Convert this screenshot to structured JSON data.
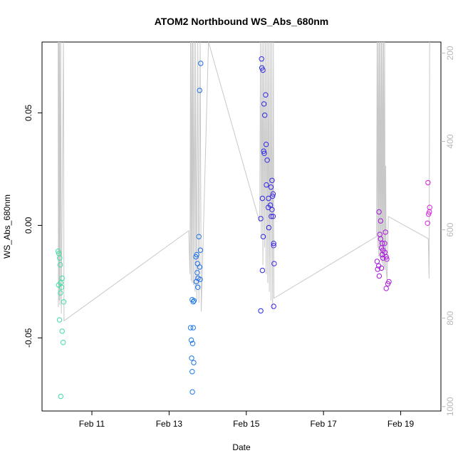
{
  "chart_data": {
    "type": "scatter",
    "title": "ATOM2 Northbound WS_Abs_680nm",
    "xlabel": "Date",
    "ylabel": "WS_Abs_680nm",
    "xlim": [
      "2023-02-09 17:00",
      "2023-02-20 01:00"
    ],
    "ylim": [
      -0.0825,
      0.0815
    ],
    "x_ticks": [
      {
        "value": "2023-02-11",
        "label": "Feb 11"
      },
      {
        "value": "2023-02-13",
        "label": "Feb 13"
      },
      {
        "value": "2023-02-15",
        "label": "Feb 15"
      },
      {
        "value": "2023-02-17",
        "label": "Feb 17"
      },
      {
        "value": "2023-02-19",
        "label": "Feb 19"
      }
    ],
    "y_ticks": [
      {
        "value": -0.05,
        "label": "-0.05"
      },
      {
        "value": 0.0,
        "label": "0.00"
      },
      {
        "value": 0.05,
        "label": "0.05"
      }
    ],
    "secondary_axis": {
      "side": "right",
      "color": "#b8b8b8",
      "ylim": [
        1010,
        175
      ],
      "ticks": [
        {
          "value": 200,
          "label": "200"
        },
        {
          "value": 400,
          "label": "400"
        },
        {
          "value": 600,
          "label": "600"
        },
        {
          "value": 800,
          "label": "800"
        },
        {
          "value": 1000,
          "label": "1000"
        }
      ]
    },
    "grid": false,
    "point_style": "open-circle",
    "color_gradient": [
      "#40e0a0",
      "#20b0e8",
      "#1830e8",
      "#7a10e0",
      "#d820d8"
    ],
    "line_color": "#c8c8c8",
    "points": [
      {
        "x": "2023-02-10 03:00",
        "y": -0.0115
      },
      {
        "x": "2023-02-10 03:30",
        "y": -0.0125
      },
      {
        "x": "2023-02-10 04:00",
        "y": -0.0145
      },
      {
        "x": "2023-02-10 04:20",
        "y": -0.0175
      },
      {
        "x": "2023-02-10 03:20",
        "y": -0.0265
      },
      {
        "x": "2023-02-10 04:40",
        "y": -0.0255
      },
      {
        "x": "2023-02-10 05:30",
        "y": -0.0235
      },
      {
        "x": "2023-02-10 05:10",
        "y": -0.0275
      },
      {
        "x": "2023-02-10 04:30",
        "y": -0.03
      },
      {
        "x": "2023-02-10 06:30",
        "y": -0.034
      },
      {
        "x": "2023-02-10 03:50",
        "y": -0.042
      },
      {
        "x": "2023-02-10 05:30",
        "y": -0.047
      },
      {
        "x": "2023-02-10 06:10",
        "y": -0.052
      },
      {
        "x": "2023-02-10 04:40",
        "y": -0.076
      },
      {
        "x": "2023-02-13 13:20",
        "y": -0.0455
      },
      {
        "x": "2023-02-13 15:00",
        "y": -0.0455
      },
      {
        "x": "2023-02-13 13:50",
        "y": -0.051
      },
      {
        "x": "2023-02-13 14:40",
        "y": -0.0525
      },
      {
        "x": "2023-02-13 14:00",
        "y": -0.059
      },
      {
        "x": "2023-02-13 15:20",
        "y": -0.061
      },
      {
        "x": "2023-02-13 14:20",
        "y": -0.065
      },
      {
        "x": "2023-02-13 14:30",
        "y": -0.074
      },
      {
        "x": "2023-02-13 14:20",
        "y": -0.033
      },
      {
        "x": "2023-02-13 15:30",
        "y": -0.0335
      },
      {
        "x": "2023-02-13 15:00",
        "y": -0.034
      },
      {
        "x": "2023-02-13 16:40",
        "y": -0.014
      },
      {
        "x": "2023-02-13 17:10",
        "y": -0.013
      },
      {
        "x": "2023-02-13 17:40",
        "y": -0.017
      },
      {
        "x": "2023-02-13 18:30",
        "y": -0.005
      },
      {
        "x": "2023-02-13 19:30",
        "y": -0.011
      },
      {
        "x": "2023-02-13 19:00",
        "y": -0.0185
      },
      {
        "x": "2023-02-13 17:30",
        "y": -0.021
      },
      {
        "x": "2023-02-13 18:00",
        "y": -0.0235
      },
      {
        "x": "2023-02-13 19:20",
        "y": -0.024
      },
      {
        "x": "2023-02-13 16:50",
        "y": -0.025
      },
      {
        "x": "2023-02-13 17:50",
        "y": -0.0275
      },
      {
        "x": "2023-02-13 19:00",
        "y": 0.06
      },
      {
        "x": "2023-02-13 19:40",
        "y": 0.072
      },
      {
        "x": "2023-02-15 09:00",
        "y": -0.038
      },
      {
        "x": "2023-02-15 09:30",
        "y": 0.074
      },
      {
        "x": "2023-02-15 09:40",
        "y": 0.07
      },
      {
        "x": "2023-02-15 10:20",
        "y": 0.069
      },
      {
        "x": "2023-02-15 12:00",
        "y": 0.058
      },
      {
        "x": "2023-02-15 11:00",
        "y": 0.054
      },
      {
        "x": "2023-02-15 11:30",
        "y": 0.049
      },
      {
        "x": "2023-02-15 12:20",
        "y": 0.036
      },
      {
        "x": "2023-02-15 10:50",
        "y": 0.033
      },
      {
        "x": "2023-02-15 11:10",
        "y": 0.032
      },
      {
        "x": "2023-02-15 13:00",
        "y": 0.029
      },
      {
        "x": "2023-02-15 16:00",
        "y": 0.02
      },
      {
        "x": "2023-02-15 12:30",
        "y": 0.018
      },
      {
        "x": "2023-02-15 15:20",
        "y": 0.017
      },
      {
        "x": "2023-02-15 16:40",
        "y": 0.014
      },
      {
        "x": "2023-02-15 16:20",
        "y": 0.013
      },
      {
        "x": "2023-02-15 10:00",
        "y": 0.012
      },
      {
        "x": "2023-02-15 13:50",
        "y": 0.012
      },
      {
        "x": "2023-02-15 15:00",
        "y": 0.009
      },
      {
        "x": "2023-02-15 13:40",
        "y": 0.008
      },
      {
        "x": "2023-02-15 16:00",
        "y": 0.007
      },
      {
        "x": "2023-02-15 15:30",
        "y": 0.004
      },
      {
        "x": "2023-02-15 16:40",
        "y": 0.004
      },
      {
        "x": "2023-02-15 09:00",
        "y": 0.003
      },
      {
        "x": "2023-02-15 14:00",
        "y": -0.001
      },
      {
        "x": "2023-02-15 10:30",
        "y": -0.005
      },
      {
        "x": "2023-02-15 17:00",
        "y": -0.008
      },
      {
        "x": "2023-02-15 17:00",
        "y": -0.009
      },
      {
        "x": "2023-02-15 17:20",
        "y": -0.017
      },
      {
        "x": "2023-02-15 10:00",
        "y": -0.02
      },
      {
        "x": "2023-02-15 17:00",
        "y": -0.036
      },
      {
        "x": "2023-02-18 10:30",
        "y": 0.006
      },
      {
        "x": "2023-02-18 11:30",
        "y": 0.002
      },
      {
        "x": "2023-02-18 14:30",
        "y": -0.003
      },
      {
        "x": "2023-02-18 11:00",
        "y": -0.004
      },
      {
        "x": "2023-02-18 11:30",
        "y": -0.006
      },
      {
        "x": "2023-02-18 12:30",
        "y": -0.008
      },
      {
        "x": "2023-02-18 14:00",
        "y": -0.008
      },
      {
        "x": "2023-02-18 12:00",
        "y": -0.01
      },
      {
        "x": "2023-02-18 13:00",
        "y": -0.011
      },
      {
        "x": "2023-02-18 14:10",
        "y": -0.012
      },
      {
        "x": "2023-02-18 12:30",
        "y": -0.013
      },
      {
        "x": "2023-02-18 15:00",
        "y": -0.014
      },
      {
        "x": "2023-02-18 13:00",
        "y": -0.0145
      },
      {
        "x": "2023-02-18 15:20",
        "y": -0.015
      },
      {
        "x": "2023-02-18 09:20",
        "y": -0.016
      },
      {
        "x": "2023-02-18 10:20",
        "y": -0.018
      },
      {
        "x": "2023-02-18 12:00",
        "y": -0.019
      },
      {
        "x": "2023-02-18 09:40",
        "y": -0.0195
      },
      {
        "x": "2023-02-18 10:40",
        "y": -0.0225
      },
      {
        "x": "2023-02-18 16:40",
        "y": -0.025
      },
      {
        "x": "2023-02-18 16:00",
        "y": -0.026
      },
      {
        "x": "2023-02-18 15:00",
        "y": -0.028
      },
      {
        "x": "2023-02-19 17:00",
        "y": 0.019
      },
      {
        "x": "2023-02-19 18:00",
        "y": 0.008
      },
      {
        "x": "2023-02-19 17:50",
        "y": 0.006
      },
      {
        "x": "2023-02-19 17:20",
        "y": 0.005
      },
      {
        "x": "2023-02-19 16:40",
        "y": 0.001
      }
    ],
    "line_secondary": [
      [
        "2023-02-10 03:00",
        175
      ],
      [
        "2023-02-10 03:10",
        775
      ],
      [
        "2023-02-10 03:30",
        175
      ],
      [
        "2023-02-10 03:40",
        760
      ],
      [
        "2023-02-10 04:00",
        175
      ],
      [
        "2023-02-10 04:10",
        770
      ],
      [
        "2023-02-10 04:40",
        175
      ],
      [
        "2023-02-10 05:00",
        790
      ],
      [
        "2023-02-10 06:20",
        175
      ],
      [
        "2023-02-10 06:40",
        806
      ],
      [
        "2023-02-13 12:10",
        602
      ],
      [
        "2023-02-13 13:00",
        700
      ],
      [
        "2023-02-13 13:20",
        175
      ],
      [
        "2023-02-13 13:40",
        715
      ],
      [
        "2023-02-13 14:00",
        175
      ],
      [
        "2023-02-13 14:20",
        720
      ],
      [
        "2023-02-13 14:40",
        175
      ],
      [
        "2023-02-13 15:10",
        725
      ],
      [
        "2023-02-13 15:30",
        175
      ],
      [
        "2023-02-13 16:10",
        740
      ],
      [
        "2023-02-13 16:30",
        175
      ],
      [
        "2023-02-13 17:10",
        760
      ],
      [
        "2023-02-13 17:50",
        175
      ],
      [
        "2023-02-13 18:30",
        765
      ],
      [
        "2023-02-13 19:20",
        175
      ],
      [
        "2023-02-13 20:00",
        785
      ],
      [
        "2023-02-14 00:30",
        175
      ],
      [
        "2023-02-15 08:20",
        583
      ],
      [
        "2023-02-15 08:50",
        175
      ],
      [
        "2023-02-15 09:20",
        620
      ],
      [
        "2023-02-15 09:50",
        175
      ],
      [
        "2023-02-15 10:20",
        680
      ],
      [
        "2023-02-15 10:50",
        175
      ],
      [
        "2023-02-15 11:20",
        640
      ],
      [
        "2023-02-15 11:50",
        175
      ],
      [
        "2023-02-15 12:20",
        700
      ],
      [
        "2023-02-15 12:50",
        175
      ],
      [
        "2023-02-15 13:20",
        720
      ],
      [
        "2023-02-15 13:50",
        175
      ],
      [
        "2023-02-15 14:20",
        740
      ],
      [
        "2023-02-15 14:50",
        175
      ],
      [
        "2023-02-15 15:20",
        760
      ],
      [
        "2023-02-15 15:50",
        175
      ],
      [
        "2023-02-15 16:20",
        780
      ],
      [
        "2023-02-15 16:50",
        175
      ],
      [
        "2023-02-15 17:10",
        755
      ],
      [
        "2023-02-18 09:00",
        615
      ],
      [
        "2023-02-18 09:20",
        175
      ],
      [
        "2023-02-18 09:40",
        640
      ],
      [
        "2023-02-18 10:00",
        175
      ],
      [
        "2023-02-18 10:20",
        660
      ],
      [
        "2023-02-18 10:40",
        175
      ],
      [
        "2023-02-18 11:00",
        665
      ],
      [
        "2023-02-18 11:20",
        175
      ],
      [
        "2023-02-18 11:40",
        670
      ],
      [
        "2023-02-18 12:00",
        175
      ],
      [
        "2023-02-18 12:20",
        675
      ],
      [
        "2023-02-18 12:40",
        175
      ],
      [
        "2023-02-18 13:00",
        680
      ],
      [
        "2023-02-18 13:20",
        175
      ],
      [
        "2023-02-18 13:40",
        685
      ],
      [
        "2023-02-18 14:00",
        175
      ],
      [
        "2023-02-18 14:20",
        690
      ],
      [
        "2023-02-18 14:40",
        455
      ],
      [
        "2023-02-18 15:00",
        690
      ],
      [
        "2023-02-18 15:30",
        715
      ],
      [
        "2023-02-18 16:20",
        570
      ],
      [
        "2023-02-19 17:10",
        620
      ],
      [
        "2023-02-19 17:40",
        710
      ],
      [
        "2023-02-19 18:00",
        175
      ]
    ]
  }
}
